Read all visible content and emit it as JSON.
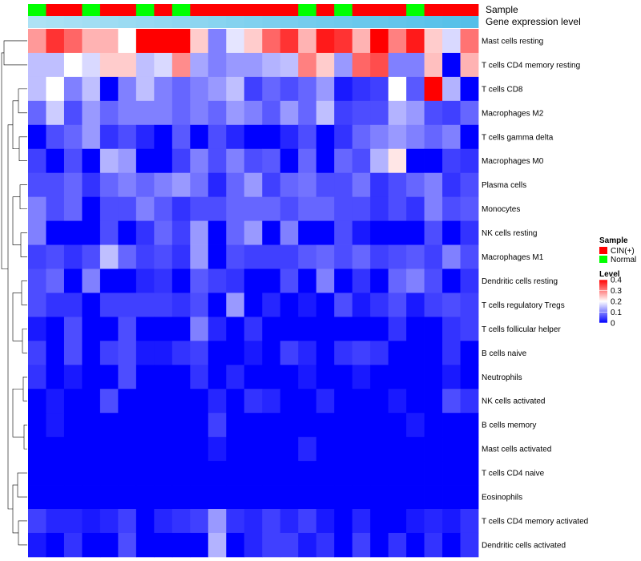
{
  "chart_data": {
    "type": "heatmap",
    "annotation_rows": [
      {
        "name": "Sample"
      },
      {
        "name": "Gene expression level"
      }
    ],
    "sample_groups": [
      "N",
      "C",
      "C",
      "N",
      "C",
      "C",
      "N",
      "C",
      "N",
      "C",
      "C",
      "C",
      "C",
      "C",
      "C",
      "N",
      "C",
      "N",
      "C",
      "C",
      "C",
      "N",
      "C",
      "C",
      "C"
    ],
    "expression_level": [
      0.0,
      0.02,
      0.04,
      0.06,
      0.08,
      0.1,
      0.12,
      0.14,
      0.16,
      0.18,
      0.2,
      0.22,
      0.24,
      0.26,
      0.28,
      0.3,
      0.32,
      0.34,
      0.36,
      0.38,
      0.4,
      0.42,
      0.44,
      0.46,
      0.48
    ],
    "rows": [
      "Mast cells resting",
      "T cells CD4 memory resting",
      "T cells CD8",
      "Macrophages M2",
      "T cells gamma delta",
      "Macrophages M0",
      "Plasma cells",
      "Monocytes",
      "NK cells resting",
      "Macrophages M1",
      "Dendritic cells resting",
      "T cells regulatory  Tregs",
      "T cells follicular helper",
      "B cells naive",
      "Neutrophils",
      "NK cells activated",
      "B cells memory",
      "Mast cells activated",
      "T cells CD4 naive",
      "Eosinophils",
      "T cells CD4 memory activated",
      "Dendritic cells activated"
    ],
    "values": [
      [
        0.28,
        0.36,
        0.32,
        0.26,
        0.26,
        0.2,
        0.4,
        0.4,
        0.4,
        0.24,
        0.1,
        0.18,
        0.24,
        0.32,
        0.36,
        0.26,
        0.38,
        0.36,
        0.26,
        0.4,
        0.3,
        0.38,
        0.24,
        0.17,
        0.31
      ],
      [
        0.15,
        0.15,
        0.2,
        0.17,
        0.24,
        0.24,
        0.15,
        0.17,
        0.29,
        0.13,
        0.1,
        0.12,
        0.12,
        0.14,
        0.15,
        0.3,
        0.24,
        0.12,
        0.32,
        0.34,
        0.1,
        0.1,
        0.25,
        0.0,
        0.26
      ],
      [
        0.15,
        0.2,
        0.1,
        0.15,
        0.0,
        0.1,
        0.15,
        0.1,
        0.08,
        0.1,
        0.12,
        0.15,
        0.05,
        0.08,
        0.06,
        0.08,
        0.12,
        0.02,
        0.04,
        0.05,
        0.2,
        0.07,
        0.4,
        0.14,
        0.0
      ],
      [
        0.08,
        0.16,
        0.06,
        0.12,
        0.08,
        0.1,
        0.1,
        0.1,
        0.08,
        0.1,
        0.08,
        0.12,
        0.1,
        0.07,
        0.12,
        0.08,
        0.15,
        0.05,
        0.06,
        0.06,
        0.14,
        0.12,
        0.06,
        0.05,
        0.08
      ],
      [
        0.0,
        0.06,
        0.08,
        0.12,
        0.04,
        0.06,
        0.03,
        0.0,
        0.07,
        0.0,
        0.06,
        0.03,
        0.0,
        0.0,
        0.03,
        0.06,
        0.0,
        0.04,
        0.08,
        0.1,
        0.12,
        0.1,
        0.08,
        0.1,
        0.0
      ],
      [
        0.05,
        0.0,
        0.06,
        0.0,
        0.14,
        0.12,
        0.0,
        0.0,
        0.05,
        0.1,
        0.06,
        0.1,
        0.06,
        0.07,
        0.0,
        0.08,
        0.0,
        0.08,
        0.06,
        0.14,
        0.22,
        0.0,
        0.0,
        0.05,
        0.04
      ],
      [
        0.06,
        0.06,
        0.08,
        0.04,
        0.08,
        0.1,
        0.08,
        0.1,
        0.12,
        0.09,
        0.03,
        0.08,
        0.12,
        0.05,
        0.08,
        0.09,
        0.06,
        0.06,
        0.09,
        0.04,
        0.06,
        0.08,
        0.1,
        0.04,
        0.06
      ],
      [
        0.1,
        0.06,
        0.08,
        0.0,
        0.06,
        0.06,
        0.1,
        0.07,
        0.04,
        0.06,
        0.06,
        0.08,
        0.08,
        0.08,
        0.06,
        0.08,
        0.08,
        0.06,
        0.06,
        0.04,
        0.06,
        0.04,
        0.1,
        0.06,
        0.07
      ],
      [
        0.1,
        0.0,
        0.0,
        0.0,
        0.06,
        0.0,
        0.04,
        0.08,
        0.05,
        0.12,
        0.0,
        0.08,
        0.12,
        0.0,
        0.1,
        0.0,
        0.0,
        0.06,
        0.02,
        0.0,
        0.0,
        0.0,
        0.06,
        0.0,
        0.04
      ],
      [
        0.05,
        0.06,
        0.04,
        0.06,
        0.15,
        0.08,
        0.05,
        0.06,
        0.04,
        0.12,
        0.0,
        0.06,
        0.05,
        0.05,
        0.05,
        0.07,
        0.08,
        0.06,
        0.08,
        0.05,
        0.06,
        0.07,
        0.05,
        0.1,
        0.06
      ],
      [
        0.06,
        0.08,
        0.0,
        0.1,
        0.0,
        0.0,
        0.03,
        0.04,
        0.0,
        0.07,
        0.05,
        0.04,
        0.0,
        0.0,
        0.06,
        0.0,
        0.1,
        0.0,
        0.04,
        0.0,
        0.08,
        0.1,
        0.06,
        0.0,
        0.04
      ],
      [
        0.06,
        0.04,
        0.04,
        0.0,
        0.05,
        0.05,
        0.05,
        0.05,
        0.04,
        0.06,
        0.0,
        0.12,
        0.0,
        0.03,
        0.0,
        0.02,
        0.0,
        0.06,
        0.02,
        0.04,
        0.06,
        0.02,
        0.05,
        0.06,
        0.05
      ],
      [
        0.02,
        0.0,
        0.06,
        0.0,
        0.0,
        0.06,
        0.0,
        0.0,
        0.0,
        0.1,
        0.03,
        0.0,
        0.04,
        0.0,
        0.0,
        0.0,
        0.0,
        0.0,
        0.0,
        0.0,
        0.04,
        0.0,
        0.0,
        0.04,
        0.05
      ],
      [
        0.05,
        0.0,
        0.06,
        0.0,
        0.05,
        0.06,
        0.02,
        0.02,
        0.04,
        0.05,
        0.0,
        0.0,
        0.02,
        0.0,
        0.05,
        0.03,
        0.0,
        0.04,
        0.05,
        0.04,
        0.0,
        0.0,
        0.0,
        0.04,
        0.0
      ],
      [
        0.04,
        0.0,
        0.02,
        0.0,
        0.0,
        0.06,
        0.0,
        0.0,
        0.0,
        0.04,
        0.0,
        0.03,
        0.0,
        0.0,
        0.0,
        0.02,
        0.0,
        0.0,
        0.02,
        0.0,
        0.0,
        0.0,
        0.0,
        0.02,
        0.0
      ],
      [
        0.0,
        0.02,
        0.0,
        0.0,
        0.06,
        0.0,
        0.0,
        0.0,
        0.0,
        0.0,
        0.03,
        0.0,
        0.04,
        0.03,
        0.0,
        0.0,
        0.03,
        0.0,
        0.0,
        0.0,
        0.02,
        0.0,
        0.0,
        0.06,
        0.04
      ],
      [
        0.0,
        0.02,
        0.0,
        0.0,
        0.0,
        0.0,
        0.0,
        0.0,
        0.0,
        0.0,
        0.05,
        0.0,
        0.0,
        0.0,
        0.0,
        0.0,
        0.0,
        0.0,
        0.0,
        0.0,
        0.0,
        0.02,
        0.0,
        0.0,
        0.0
      ],
      [
        0.0,
        0.0,
        0.0,
        0.0,
        0.0,
        0.0,
        0.0,
        0.0,
        0.0,
        0.0,
        0.02,
        0.0,
        0.0,
        0.0,
        0.0,
        0.03,
        0.0,
        0.0,
        0.0,
        0.0,
        0.0,
        0.0,
        0.0,
        0.0,
        0.0
      ],
      [
        0.0,
        0.0,
        0.0,
        0.0,
        0.0,
        0.0,
        0.0,
        0.0,
        0.0,
        0.0,
        0.0,
        0.0,
        0.0,
        0.0,
        0.0,
        0.0,
        0.0,
        0.0,
        0.0,
        0.0,
        0.0,
        0.0,
        0.0,
        0.0,
        0.0
      ],
      [
        0.0,
        0.0,
        0.0,
        0.0,
        0.0,
        0.0,
        0.0,
        0.0,
        0.0,
        0.0,
        0.0,
        0.0,
        0.0,
        0.0,
        0.0,
        0.0,
        0.0,
        0.0,
        0.0,
        0.0,
        0.0,
        0.0,
        0.0,
        0.0,
        0.0
      ],
      [
        0.05,
        0.03,
        0.03,
        0.02,
        0.03,
        0.05,
        0.0,
        0.03,
        0.04,
        0.05,
        0.12,
        0.04,
        0.03,
        0.05,
        0.03,
        0.05,
        0.02,
        0.0,
        0.03,
        0.0,
        0.0,
        0.02,
        0.03,
        0.02,
        0.04
      ],
      [
        0.02,
        0.0,
        0.04,
        0.0,
        0.0,
        0.06,
        0.0,
        0.0,
        0.0,
        0.0,
        0.14,
        0.0,
        0.03,
        0.05,
        0.05,
        0.02,
        0.04,
        0.0,
        0.05,
        0.0,
        0.04,
        0.0,
        0.04,
        0.0,
        0.04
      ]
    ],
    "legend": [
      {
        "title": "Sample",
        "entries": [
          {
            "label": "CIN(+)",
            "color": "#ff0000"
          },
          {
            "label": "Normal",
            "color": "#00ff00"
          }
        ]
      },
      {
        "title": "Level",
        "ticks": [
          "0.4",
          "0.3",
          "0.2",
          "0.1",
          "0"
        ],
        "range": [
          0,
          0.4
        ]
      }
    ],
    "legend_placement": "right",
    "colors": {
      "low": "#0000ff",
      "mid": "#ffffff",
      "high": "#ff0000",
      "cin": "#ff0000",
      "normal": "#00ff00"
    }
  }
}
